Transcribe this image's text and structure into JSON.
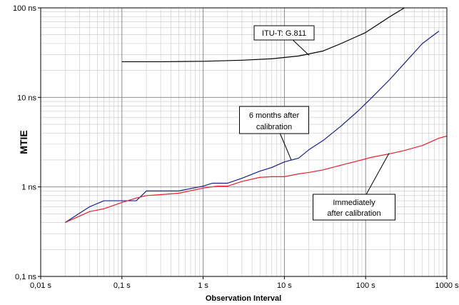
{
  "chart_data": {
    "type": "line",
    "title": "",
    "xlabel": "Observation Interval",
    "ylabel": "MTIE",
    "x_scale": "log",
    "y_scale": "log",
    "xlim": [
      0.01,
      1000
    ],
    "ylim": [
      0.1,
      100
    ],
    "grid": true,
    "x_ticks": [
      0.01,
      0.1,
      1,
      10,
      100,
      1000
    ],
    "x_tick_labels": [
      "0,01 s",
      "0,1 s",
      "1 s",
      "10 s",
      "100 s",
      "1000 s"
    ],
    "y_ticks": [
      0.1,
      1,
      10,
      100
    ],
    "y_tick_labels": [
      "0,1 ns",
      "1 ns",
      "10 ns",
      "100 ns"
    ],
    "series": [
      {
        "name": "ITU-T: G.811",
        "color": "#000000",
        "x": [
          0.1,
          0.3,
          1,
          3,
          7,
          15,
          30,
          50,
          100,
          200,
          300
        ],
        "y": [
          25,
          25,
          25.3,
          26,
          27,
          29,
          33,
          40,
          53,
          80,
          100
        ]
      },
      {
        "name": "6 months after calibration",
        "color": "#1a1f8c",
        "x": [
          0.02,
          0.04,
          0.06,
          0.1,
          0.15,
          0.2,
          0.5,
          1,
          1.3,
          2,
          3,
          5,
          7,
          10,
          15,
          20,
          30,
          50,
          80,
          120,
          200,
          300,
          500,
          800
        ],
        "y": [
          0.4,
          0.6,
          0.7,
          0.7,
          0.7,
          0.9,
          0.9,
          1.02,
          1.1,
          1.1,
          1.25,
          1.5,
          1.65,
          1.9,
          2.1,
          2.6,
          3.3,
          4.8,
          7,
          10,
          16,
          24,
          40,
          55
        ]
      },
      {
        "name": "Immediately after calibration",
        "color": "#e8202a",
        "x": [
          0.02,
          0.04,
          0.06,
          0.1,
          0.15,
          0.2,
          0.3,
          0.5,
          1,
          1.5,
          2,
          3,
          5,
          7,
          10,
          15,
          20,
          30,
          50,
          80,
          120,
          200,
          300,
          500,
          800,
          1000
        ],
        "y": [
          0.4,
          0.53,
          0.57,
          0.67,
          0.75,
          0.8,
          0.82,
          0.85,
          0.97,
          1.02,
          1.02,
          1.15,
          1.28,
          1.3,
          1.3,
          1.4,
          1.45,
          1.55,
          1.75,
          1.95,
          2.15,
          2.35,
          2.55,
          2.9,
          3.5,
          3.7
        ]
      }
    ],
    "annotations": [
      {
        "lines": [
          "ITU-T: G.811"
        ],
        "series": 0
      },
      {
        "lines": [
          "6 months after",
          "calibration"
        ],
        "series": 1
      },
      {
        "lines": [
          "Immediately",
          "after calibration"
        ],
        "series": 2
      }
    ]
  }
}
